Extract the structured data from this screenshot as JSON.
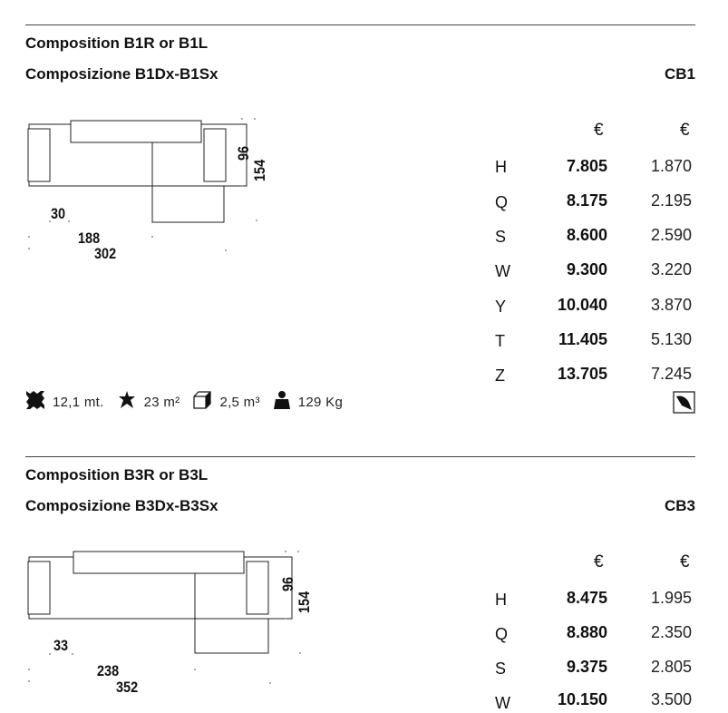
{
  "sections": [
    {
      "title_en": "Composition B1R or B1L",
      "title_it": "Composizione B1Dx-B1Sx",
      "code": "CB1",
      "dims": {
        "arm": "30",
        "width_inner": "188",
        "width_total": "302",
        "depth_seat": "96",
        "depth_total": "154"
      },
      "price_headers": [
        "€",
        "€"
      ],
      "rows": [
        {
          "grade": "H",
          "price": "7.805",
          "price2": "1.870"
        },
        {
          "grade": "Q",
          "price": "8.175",
          "price2": "2.195"
        },
        {
          "grade": "S",
          "price": "8.600",
          "price2": "2.590"
        },
        {
          "grade": "W",
          "price": "9.300",
          "price2": "3.220"
        },
        {
          "grade": "Y",
          "price": "10.040",
          "price2": "3.870"
        },
        {
          "grade": "T",
          "price": "11.405",
          "price2": "5.130"
        },
        {
          "grade": "Z",
          "price": "13.705",
          "price2": "7.245"
        }
      ],
      "specs": {
        "fabric": "12,1 mt.",
        "leather": "23 m²",
        "volume": "2,5 m³",
        "weight": "129 Kg"
      }
    },
    {
      "title_en": "Composition B3R or B3L",
      "title_it": "Composizione B3Dx-B3Sx",
      "code": "CB3",
      "dims": {
        "arm": "33",
        "width_inner": "238",
        "width_total": "352",
        "depth_seat": "96",
        "depth_total": "154"
      },
      "price_headers": [
        "€",
        "€"
      ],
      "rows": [
        {
          "grade": "H",
          "price": "8.475",
          "price2": "1.995"
        },
        {
          "grade": "Q",
          "price": "8.880",
          "price2": "2.350"
        },
        {
          "grade": "S",
          "price": "9.375",
          "price2": "2.805"
        },
        {
          "grade": "W",
          "price": "10.150",
          "price2": "3.500"
        }
      ]
    }
  ],
  "icons": {
    "fabric": "fabric-swatch-icon",
    "leather": "leather-hide-icon",
    "volume": "package-cube-icon",
    "weight": "weight-icon",
    "cover": "removable-cover-icon"
  }
}
